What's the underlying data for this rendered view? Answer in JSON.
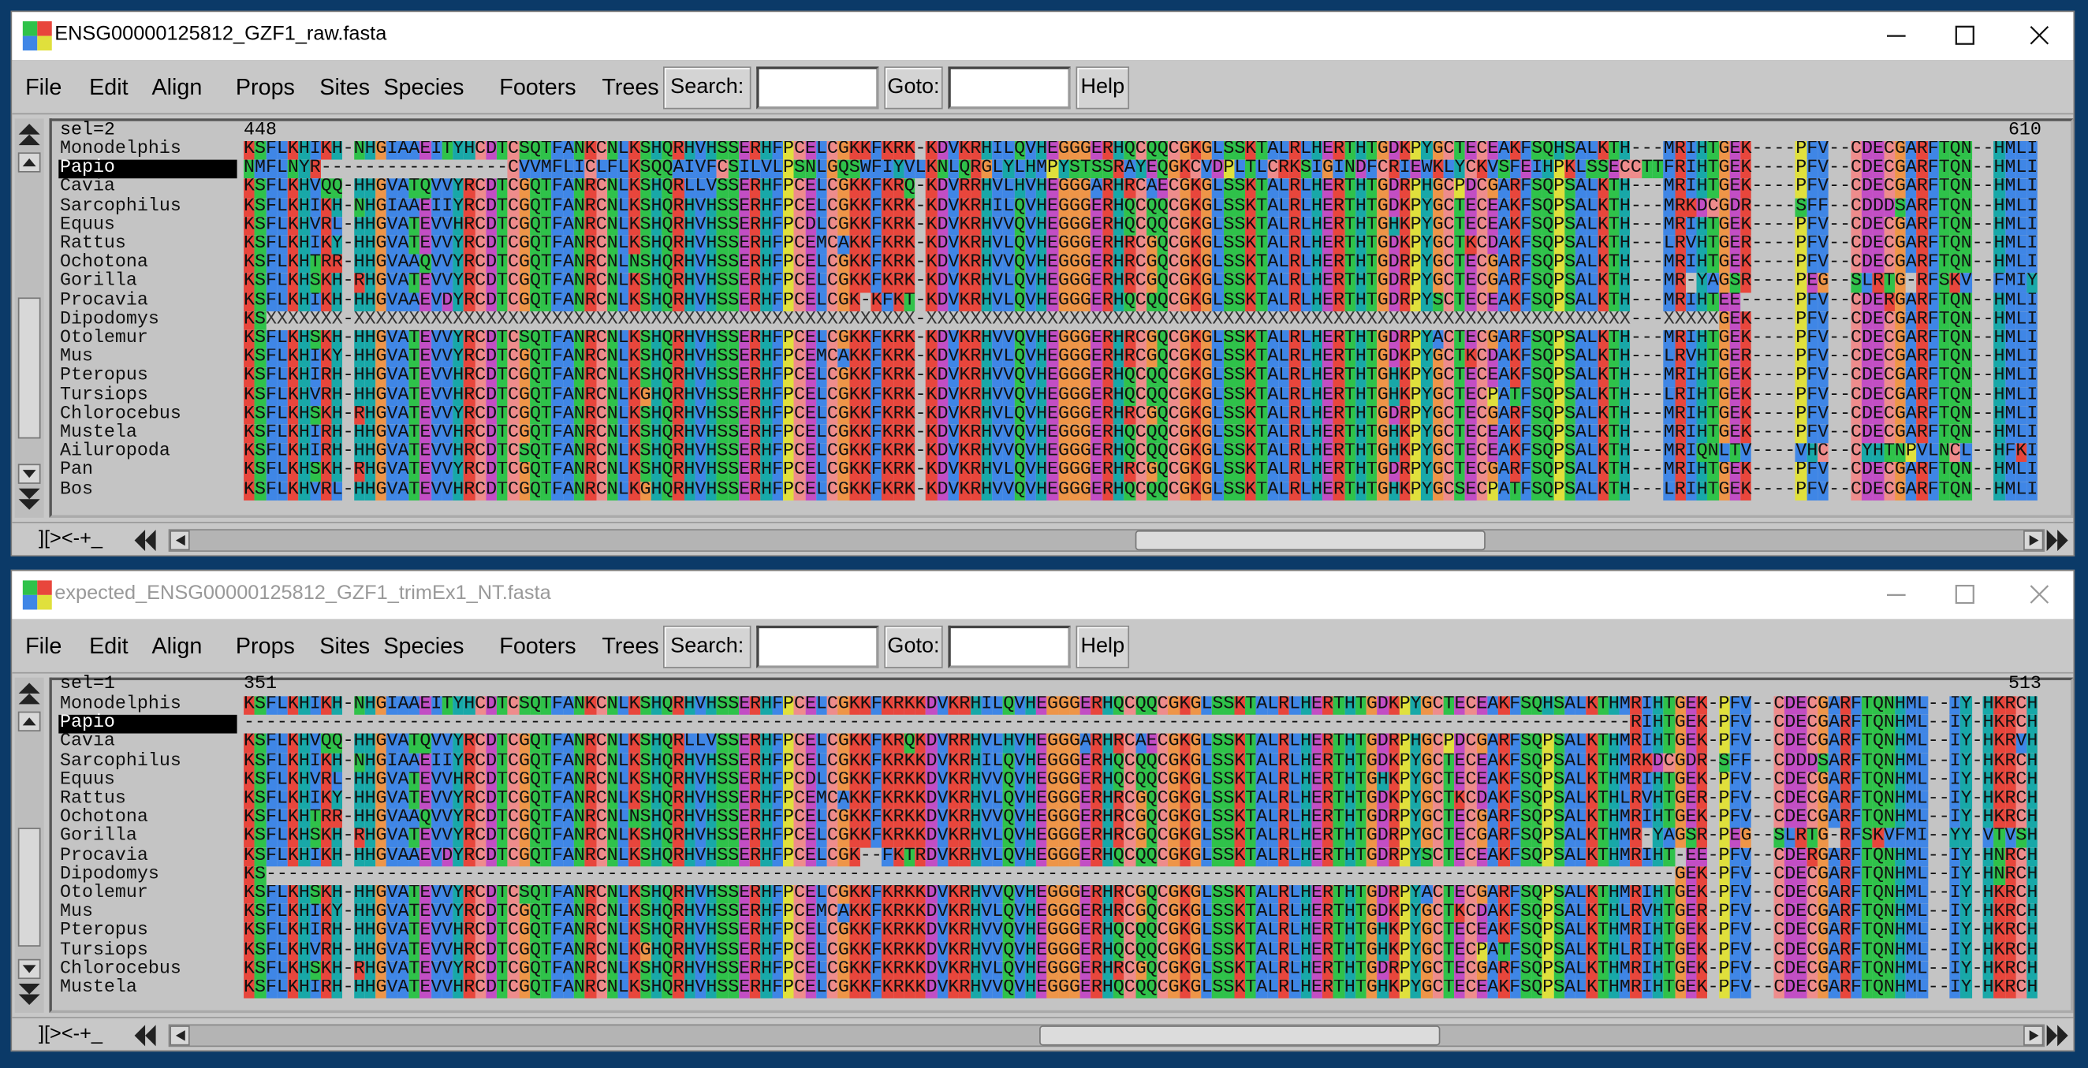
{
  "windows": [
    {
      "title": "ENSG00000125812_GZF1_raw.fasta",
      "active": true,
      "menu": [
        "File",
        "Edit",
        "Align",
        "Props",
        "Sites",
        "Species",
        "Footers",
        "Trees"
      ],
      "search_label": "Search:",
      "goto_label": "Goto:",
      "help": "Help",
      "selection": "sel=2",
      "first_site": 448,
      "last_site": 610,
      "selected_row": 1,
      "rows": [
        {
          "name": "Monodelphis",
          "seq": "KSFLKHIKH-NHGIAAEITYHCDTCSQTFANKCNLKSHQRHVHSSERHFPCELCGKKFKRK-KDVKRHILQVHEGGGERHQCQQCGKGLSSKTALRLHERTHTGDKPYGCTECEAKFSQHSALKTH---MRIHTGEK----PFV--CDECGARFTQN--HMLI"
        },
        {
          "name": "Papio",
          "seq": "NMFLNYR-----------------CVVMFLICLFLKSQQAIVFCSILVLPSNLGQSWFIYVLKNLQRGLYLHMPYSTSSRAYEQGKCVDPLTLCRKSIGINDFCRIEWKLYCKVSFEIHPKLSSECCTTFRIHTGEK----PFV--CDECGARFTQN--HMLI"
        },
        {
          "name": "Cavia",
          "seq": "KSFLKHVQQ-HHGVATQVVYRCDTCGQTFANRCNLKSHQRLLVSSERHFPCELCGKKFKRQ-KDVRRHVLHVHEGGGARHRCAECGKGLSSKTALRLHERTHTGDRPHGCPDCGARFSQPSALKTH---MRIHTGEK----PFV--CDECGARFTQN--HMLI"
        },
        {
          "name": "Sarcophilus",
          "seq": "KSFLKHIKH-NHGIAAEIIYRCDTCGQTFANRCNLKSHQRHVHSSERHFPCELCGKKFKRK-KDVKRHILQVHEGGGERHQCQQCGKGLSSKTALRLHERTHTGDKPYGCTECEAKFSQPSALKTH---MRKDCGDR----SFF--CDDDSARFTQN--HMLI"
        },
        {
          "name": "Equus",
          "seq": "KSFLKHVRL-HHGVATEVVHRCDTCGQTFANRCNLKSHQRHVHSSERHFPCDLCGKKFKRK-KDVKRHVVQVHEGGGERHQCQQCGKGLSSKTALRLHERTHTGHKPYGCTECEAKFSQPSALKTH---MRIHTGEK----PFV--CDECGARFTQN--HMLI"
        },
        {
          "name": "Rattus",
          "seq": "KSFLKHIKY-HHGVATEVVYRCDTCGQTFANRCNLKSHQRHVHSSERHFPCEMCAKKFKRK-KDVKRHVLQVHEGGGERHRCGQCGKGLSSKTALRLHERTHTGDKPYGCTKCDAKFSQPSALKTH---LRVHTGER----PFV--CDECGARFTQN--HMLI"
        },
        {
          "name": "Ochotona",
          "seq": "KSFLKHTRR-HHGVAAQVVYRCDTCGQTFANRCNLNSHQRHVHSSERHFPCELCGKKFKRK-KDVKRHVVQVHEGGGERHRCGQCGKGLSSKTALRLHERTHTGDRPYGCTECGARFSQPSALKTH---MRIHTGEK----PFV--CDECGARFTQN--HMLI"
        },
        {
          "name": "Gorilla",
          "seq": "KSFLKHSKH-RHGVATEVVYRCDTCGQTFANRCNLKSHQRHVHSSERHFPCELCGKKFKRK-KDVKRHVLQVHEGGGERHRCGQCGKGLSSKTALRLHERTHTGDRPYGCTECGARFSQPSALKTH---MR-YAGSR----PEG--SLRTG-RFSKV--FMIY"
        },
        {
          "name": "Procavia",
          "seq": "KSFLKHIKH-HHGVAAEVDYRCDTCGQTFANRCNLKSHQRHVHSSERHFPCELCGK-KFKT-KDVKRHVLQVHEGGGERHQCQQCGKGLSSKTALRLHERTHTGDRPYSCTECEAKFSQPSALKTH---MRIHTEE-----PFV--CDERGARFTQN--HMLI"
        },
        {
          "name": "Dipodomys",
          "seq": "KSXXXXXXX-XXXXXXXXXXXXXXXXXXXXXXXXXXXXXXXXXXXXXXXXXXXXXXXXXXX-XXXXXXXXXXXXXXXXXXXXXXXXXXXXXXXXXXXXXXXXXXXXXXXXXXXXXXXXXXXXXXXX---XXXXXGEK----PFV--CDECGARFTQN--HMLI"
        },
        {
          "name": "Otolemur",
          "seq": "KSFLKHSKH-HHGVATEVVYRCDTCSQTFANRCNLKSHQRHVHSSERHFPCELCGKKFKRK-KDVKRHVVQVHEGGGERHRCGQCGKGLSSKTALRLHERTHTGDRPYACTECGARFSQPSALKTH---MRIHTGEK----PFV--CDECGARFTQN--HMLI"
        },
        {
          "name": "Mus",
          "seq": "KSFLKHIKY-HHGVATEVVYRCDTCGQTFANRCNLKSHQRHVHSSERHFPCEMCAKKFKRK-KDVKRHVLQVHEGGGERHRCGQCGKGLSSKTALRLHERTHTGDKPYGCTKCDAKFSQPSALKTH---LRVHTGER----PFV--CDECGARFTQN--HMLI"
        },
        {
          "name": "Pteropus",
          "seq": "KSFLKHIRH-HHGVATEVVHRCDTCGQTFANRCNLKSHQRHVHSSERHFPCELCGKKFKRK-KDVKRHVVQVHEGGGERHQCQQCGKGLSSKTALRLHERTHTGHKPYGCTECEAKFSQPSALKTH---MRIHTGEK----PFV--CDECGARFTQN--HMLI"
        },
        {
          "name": "Tursiops",
          "seq": "KSFLKHVRH-HHGVATEVVHRCDTCGQTFANRCNLKGHQRHVHSSERHFPCELCGKKFKRK-KDVKRHVVQVHEGGGERHQCQQCGKGLSSKTALRLHERTHTGHKPYGCTECPATFSQPSALKTH---LRIHTGEK----PFV--CDECGARFTQN--HMLI"
        },
        {
          "name": "Chlorocebus",
          "seq": "KSFLKHSKH-RHGVATEVVYRCDTCGQTFANRCNLKSHQRHVHSSERHFPCELCGKKFKRK-KDVKRHVLQVHEGGGERHRCGQCGKGLSSKTALRLHERTHTGDRPYGCTECGARFSQPSALKTH---MRIHTGEK----PFV--CDECGARFTQN--HMLI"
        },
        {
          "name": "Mustela",
          "seq": "KSFLKHIRH-HHGVATEVVHRCDTCGQTFANRCNLKSHQRHVHSSERHFPCELCGKKFKRK-KDVKRHVVQVHEGGGERHQCQQCGKGLSSKTALRLHERTHTGHKPYGCTECEAKFSQPSALKTH---MRIHTGEK----PFV--CDECGARFTQN--HMLI"
        },
        {
          "name": "Ailuropoda",
          "seq": "KSFLKHIRH-HHGVATEVVHRCDTCSQTFANRCNLKSHQRHVHSSERHFPCELCGKKFKRK-KDVKRHVVQVHEGGGERHQCQQCGKGLSSKTALRLHERTHTGHKPYGCTECEAKFSQPSALKTH---MRIQNLTV----VHC--CYHTNPVLNCL--HFKI"
        },
        {
          "name": "Pan",
          "seq": "KSFLKHSKH-RHGVATEVVYRCDTCGQTFANRCNLKSHQRHVHSSERHFPCELCGKKFKRK-KDVKRHVLQVHEGGGERHRCGQCGKGLSSKTALRLHERTHTGDRPYGCTECGARFSQPSALKTH---MRIHTGEK----PFV--CDECGARFTQN--HMLI"
        },
        {
          "name": "Bos",
          "seq": "KSFLKHVRL-HHGVATEVVHRCDTCGQTFANRCNLKGHQRHVHSSERHFPCELCGKKFKRK-KDVKRHVVQVHEGGGERHQCQQCGKGLSSKTALRLHERTHTGHKPYGCSECPATFSQPSALKTH---LRIHTGEK----PFV--CDECGARFTQN--HMLI"
        }
      ],
      "footer": "][><-+_"
    },
    {
      "title": "expected_ENSG00000125812_GZF1_trimEx1_NT.fasta",
      "active": false,
      "menu": [
        "File",
        "Edit",
        "Align",
        "Props",
        "Sites",
        "Species",
        "Footers",
        "Trees"
      ],
      "search_label": "Search:",
      "goto_label": "Goto:",
      "help": "Help",
      "selection": "sel=1",
      "first_site": 351,
      "last_site": 513,
      "selected_row": 1,
      "rows": [
        {
          "name": "Monodelphis",
          "seq": "KSFLKHIKH-NHGIAAEITYHCDTCSQTFANKCNLKSHQRHVHSSERHFPCELCGKKFKRKKDVKRHILQVHEGGGERHQCQQCGKGLSSKTALRLHERTHTGDKPYGCTECEAKFSQHSALKTHMRIHTGEK-PFV--CDECGARFTQNHML--IY-HKRCH"
        },
        {
          "name": "Papio",
          "seq": "------------------------------------------------------------------------------------------------------------------------------RIHTGEK-PFV--CDECGARFTQNHML--IY-HKRCH"
        },
        {
          "name": "Cavia",
          "seq": "KSFLKHVQQ-HHGVATQVVYRCDTCGQTFANRCNLKSHQRLLVSSERHFPCELCGKKFKRQKDVRRHVLHVHEGGGARHRCAECGKGLSSKTALRLHERTHTGDRPHGCPDCGARFSQPSALKTHMRIHTGEK-PFV--CDECGARFTQNHML--IY-HKRVH"
        },
        {
          "name": "Sarcophilus",
          "seq": "KSFLKHIKH-NHGIAAEIIYRCDTCGQTFANRCNLKSHQRHVHSSERHFPCELCGKKFKRKKDVKRHILQVHEGGGERHQCQQCGKGLSSKTALRLHERTHTGDKPYGCTECEAKFSQPSALKTHMRKDCGDR-SFF--CDDDSARFTQNHML--IY-HKRCH"
        },
        {
          "name": "Equus",
          "seq": "KSFLKHVRL-HHGVATEVVHRCDTCGQTFANRCNLKSHQRHVHSSERHFPCDLCGKKFKRKKDVKRHVVQVHEGGGERHQCQQCGKGLSSKTALRLHERTHTGHKPYGCTECEAKFSQPSALKTHMRIHTGEK-PFV--CDECGARFTQNHML--IY-HKRCH"
        },
        {
          "name": "Rattus",
          "seq": "KSFLKHIKY-HHGVATEVVYRCDTCGQTFANRCNLKSHQRHVHSSERHFPCEMCAKKFKRKKDVKRHVLQVHEGGGERHRCGQCGKGLSSKTALRLHERTHTGDKPYGCTKCDAKFSQPSALKTHLRVHTGER-PFV--CDECGARFTQNHML--IY-HKRCH"
        },
        {
          "name": "Ochotona",
          "seq": "KSFLKHTRR-HHGVAAQVVYRCDTCGQTFANRCNLNSHQRHVHSSERHFPCELCGKKFKRKKDVKRHVVQVHEGGGERHRCGQCGKGLSSKTALRLHERTHTGDRPYGCTECGARFSQPSALKTHMRIHTGEK-PFV--CDECGARFTQNHML--IY-HKRCH"
        },
        {
          "name": "Gorilla",
          "seq": "KSFLKHSKH-RHGVATEVVYRCDTCGQTFANRCNLKSHQRHVHSSERHFPCELCGKKFKRKKDVKRHVLQVHEGGGERHRCGQCGKGLSSKTALRLHERTHTGDRPYGCTECGARFSQPSALKTHMR-YAGSR-PEG--SLRTG-RFSKVFMI--YY-VTVSH"
        },
        {
          "name": "Procavia",
          "seq": "KSFLKHIKH-HHGVAAEVDYRCDTCGQTFANRCNLKSHQRHVHSSERHFPCELCGK--FKTRDVKRHVLQVHEGGGERHQCQQCGKGLSSKTALRLHERTHTGDRPYSCTECEAKFSQPSALKTHMRIHT-EE-PFV--CDERGARFTQNHML--IY-HNRCH"
        },
        {
          "name": "Dipodomys",
          "seq": "KS--------------------------------------------------------------------------------------------------------------------------------GEK-PFV--CDECGARFTQNHML--IY-HNRCH"
        },
        {
          "name": "Otolemur",
          "seq": "KSFLKHSKH-HHGVATEVVYRCDTCSQTFANRCNLKSHQRHVHSSERHFPCELCGKKFKRKKDVKRHVVQVHEGGGERHRCGQCGKGLSSKTALRLHERTHTGDRPYACTECGARFSQPSALKTHMRIHTGEK-PFV--CDECGARFTQNHML--IY-HKRCH"
        },
        {
          "name": "Mus",
          "seq": "KSFLKHIKY-HHGVATEVVYRCDTCGQTFANRCNLKSHQRHVHSSERHFPCEMCAKKFKRKKDVKRHVLQVHEGGGERHRCGQCGKGLSSKTALRLHERTHTGDKPYGCTKCDAKFSQPSALKTHLRVHTGER-PFV--CDECGARFTQNHML--IY-HKRCH"
        },
        {
          "name": "Pteropus",
          "seq": "KSFLKHIRH-HHGVATEVVHRCDTCGQTFANRCNLKSHQRHVHSSERHFPCELCGKKFKRKKDVKRHVVQVHEGGGERHQCQQCGKGLSSKTALRLHERTHTGHKPYGCTECEAKFSQPSALKTHMRIHTGEK-PFV--CDECGARFTQNHML--IY-HKRCH"
        },
        {
          "name": "Tursiops",
          "seq": "KSFLKHVRH-HHGVATEVVHRCDTCGQTFANRCNLKGHQRHVHSSERHFPCELCGKKFKRKKDVKRHVVQVHEGGGERHQCQQCGKGLSSKTALRLHERTHTGHKPYGCTECPATFSQPSALKTHLRIHTGEK-PFV--CDECGARFTQNHML--IY-HKRCH"
        },
        {
          "name": "Chlorocebus",
          "seq": "KSFLKHSKH-RHGVATEVVYRCDTCGQTFANRCNLKSHQRHVHSSERHFPCELCGKKFKRKKDVKRHVLQVHEGGGERHRCGQCGKGLSSKTALRLHERTHTGDRPYGCTECGARFSQPSALKTHMRIHTGEK-PFV--CDECGARFTQNHML--IY-HKRCH"
        },
        {
          "name": "Mustela",
          "seq": "KSFLKHIRH-HHGVATEVVHRCDTCGQTFANRCNLKSHQRHVHSSERHFPCELCGKKFKRKKDVKRHVVQVHEGGGERHQCQQCGKGLSSKTALRLHERTHTGHKPYGCTECEAKFSQPSALKTHMRIHTGEK-PFV--CDECGARFTQNHML--IY-HKRCH"
        }
      ],
      "footer": "][><-+_"
    }
  ]
}
